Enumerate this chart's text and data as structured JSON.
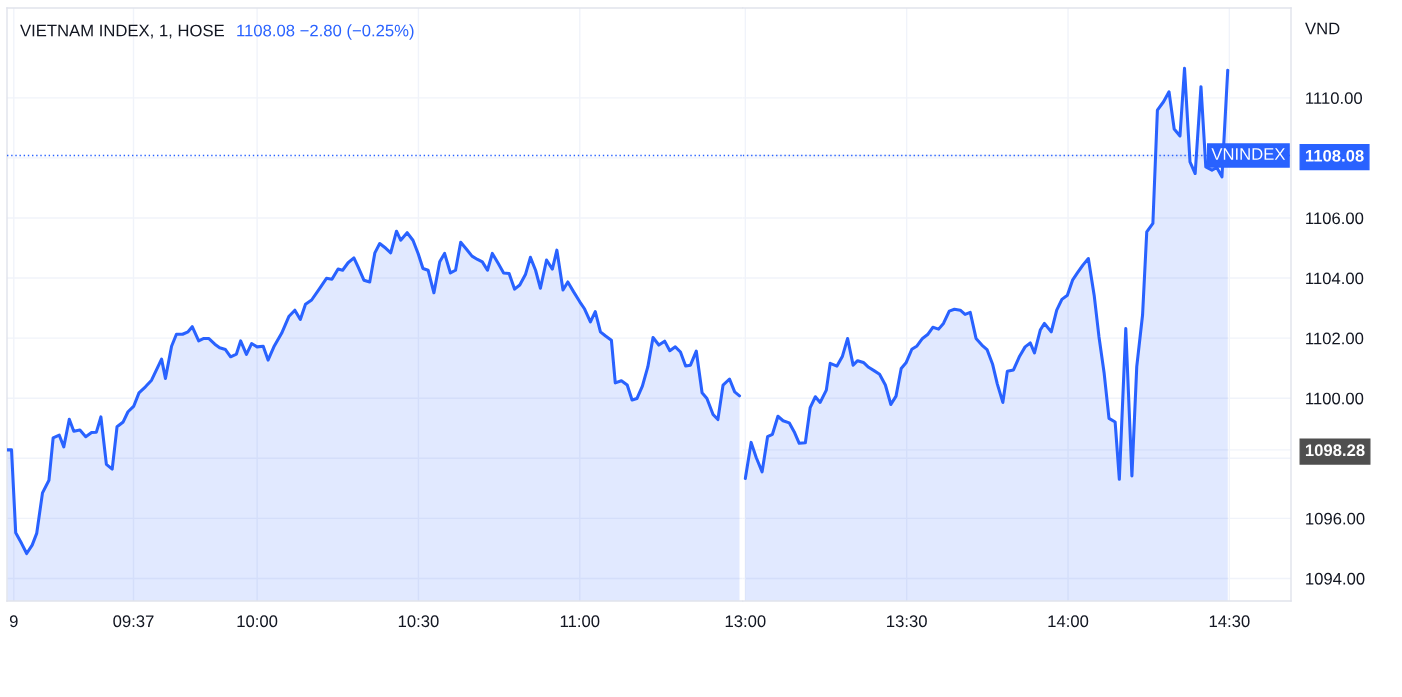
{
  "chart_data": [
    {
      "type": "area",
      "title": "VIETNAM INDEX, 1, HOSE",
      "subtitle": "1108.08 −2.80 (−0.25%)",
      "color": "#2962ff",
      "x": [
        9.226,
        9.239,
        9.252,
        9.27,
        9.286,
        9.303,
        9.317,
        9.335,
        9.355,
        9.368,
        9.387,
        9.401,
        9.418,
        9.432,
        9.451,
        9.469,
        9.487,
        9.502,
        9.516,
        9.533,
        9.551,
        9.566,
        9.585,
        9.6,
        9.618,
        9.634,
        9.654,
        9.673,
        9.704,
        9.716,
        9.735,
        9.75,
        9.769,
        9.786,
        9.799,
        9.819,
        9.835,
        9.85,
        9.869,
        9.884,
        9.902,
        9.918,
        9.936,
        9.949,
        9.967,
        9.983,
        10.0,
        10.019,
        10.034,
        10.052,
        10.076,
        10.099,
        10.117,
        10.134,
        10.15,
        10.169,
        10.194,
        10.215,
        10.232,
        10.251,
        10.265,
        10.282,
        10.3,
        10.313,
        10.331,
        10.349,
        10.365,
        10.38,
        10.399,
        10.414,
        10.432,
        10.445,
        10.465,
        10.483,
        10.499,
        10.514,
        10.53,
        10.548,
        10.566,
        10.581,
        10.599,
        10.615,
        10.631,
        10.649,
        10.666,
        10.683,
        10.698,
        10.714,
        10.729,
        10.747,
        10.764,
        10.781,
        10.798,
        10.814,
        10.832,
        10.847,
        10.863,
        10.878,
        10.897,
        10.915,
        10.929,
        10.948,
        10.963,
        10.981,
        11.0,
        11.015,
        11.033,
        11.048,
        11.064,
        11.08,
        11.098,
        11.11,
        11.129,
        11.147,
        11.162,
        11.177,
        11.194,
        11.211,
        11.227,
        11.245,
        11.263,
        11.279,
        11.296,
        11.312,
        11.328,
        11.343,
        11.361,
        11.379,
        11.394,
        11.413,
        11.428,
        11.444,
        11.464,
        11.48,
        11.495
      ],
      "values": [
        1098.28,
        1098.28,
        1095.52,
        1095.17,
        1094.83,
        1095.11,
        1095.5,
        1096.85,
        1097.27,
        1098.68,
        1098.77,
        1098.38,
        1099.3,
        1098.9,
        1098.94,
        1098.72,
        1098.86,
        1098.87,
        1099.38,
        1097.8,
        1097.64,
        1099.05,
        1099.21,
        1099.55,
        1099.74,
        1100.18,
        1100.38,
        1100.6,
        1101.3,
        1100.66,
        1101.73,
        1102.13,
        1102.13,
        1102.21,
        1102.38,
        1101.91,
        1101.99,
        1101.99,
        1101.8,
        1101.68,
        1101.62,
        1101.38,
        1101.47,
        1101.91,
        1101.46,
        1101.82,
        1101.71,
        1101.73,
        1101.27,
        1101.71,
        1102.16,
        1102.73,
        1102.93,
        1102.62,
        1103.13,
        1103.27,
        1103.66,
        1103.99,
        1103.96,
        1104.3,
        1104.26,
        1104.51,
        1104.67,
        1104.37,
        1103.93,
        1103.87,
        1104.84,
        1105.15,
        1104.99,
        1104.84,
        1105.56,
        1105.26,
        1105.51,
        1105.26,
        1104.82,
        1104.32,
        1104.26,
        1103.51,
        1104.54,
        1104.82,
        1104.17,
        1104.26,
        1105.19,
        1104.96,
        1104.73,
        1104.62,
        1104.54,
        1104.26,
        1104.82,
        1104.49,
        1104.17,
        1104.15,
        1103.63,
        1103.77,
        1104.13,
        1104.69,
        1104.26,
        1103.66,
        1104.6,
        1104.3,
        1104.93,
        1103.6,
        1103.87,
        1103.54,
        1103.21,
        1102.97,
        1102.54,
        1102.88,
        1102.21,
        1102.07,
        1101.93,
        1100.51,
        1100.58,
        1100.44,
        1099.94,
        1099.99,
        1100.4,
        1101.05,
        1102.02,
        1101.77,
        1101.9,
        1101.58,
        1101.71,
        1101.54,
        1101.07,
        1101.1,
        1101.57,
        1100.18,
        1099.99,
        1099.46,
        1099.29,
        1100.44,
        1100.64,
        1100.21,
        1100.08
      ],
      "xlim": [
        9.225,
        11.505
      ],
      "ylim": [
        1093.25,
        1112.99
      ],
      "xticks": [
        {
          "value": 9.246,
          "label": "9"
        },
        {
          "value": 9.617,
          "label": "09:37"
        },
        {
          "value": 10,
          "label": "10:00"
        },
        {
          "value": 10.5,
          "label": "10:30"
        },
        {
          "value": 11,
          "label": "11:00"
        }
      ],
      "yticks": [
        1094,
        1096,
        1098,
        1100,
        1102,
        1104,
        1106,
        1108,
        1110
      ],
      "grid": true,
      "tick_labels": "x",
      "ref_lines": [
        {
          "axis": "y",
          "value": 1108.08,
          "color": "#2962ff",
          "line_style": "dotted"
        }
      ]
    },
    {
      "type": "area",
      "ylabel": "VND",
      "color": "#2962ff",
      "x": [
        13.0,
        13.018,
        13.034,
        13.052,
        13.069,
        13.084,
        13.101,
        13.117,
        13.136,
        13.153,
        13.167,
        13.186,
        13.201,
        13.217,
        13.232,
        13.251,
        13.263,
        13.284,
        13.301,
        13.317,
        13.334,
        13.348,
        13.366,
        13.382,
        13.4,
        13.416,
        13.434,
        13.451,
        13.467,
        13.483,
        13.498,
        13.516,
        13.532,
        13.549,
        13.565,
        13.581,
        13.599,
        13.614,
        13.632,
        13.648,
        13.666,
        13.681,
        13.697,
        13.715,
        13.733,
        13.749,
        13.766,
        13.781,
        13.798,
        13.812,
        13.831,
        13.85,
        13.867,
        13.883,
        13.896,
        13.914,
        13.927,
        13.948,
        13.965,
        13.981,
        13.998,
        14.014,
        14.029,
        14.046,
        14.063,
        14.081,
        14.096,
        14.112,
        14.127,
        14.146,
        14.159,
        14.179,
        14.198,
        14.213,
        14.231,
        14.244,
        14.263,
        14.277,
        14.296,
        14.313,
        14.329,
        14.347,
        14.361,
        14.378,
        14.394,
        14.412,
        14.427,
        14.446,
        14.461,
        14.477,
        14.495
      ],
      "values": [
        1097.33,
        1098.53,
        1098.02,
        1097.55,
        1098.72,
        1098.8,
        1099.4,
        1099.25,
        1099.18,
        1098.85,
        1098.5,
        1098.52,
        1099.69,
        1100.05,
        1099.86,
        1100.27,
        1101.16,
        1101.07,
        1101.4,
        1101.99,
        1101.1,
        1101.25,
        1101.19,
        1101.03,
        1100.91,
        1100.8,
        1100.44,
        1099.79,
        1100.07,
        1100.99,
        1101.18,
        1101.63,
        1101.74,
        1101.99,
        1102.12,
        1102.36,
        1102.3,
        1102.49,
        1102.9,
        1102.96,
        1102.93,
        1102.79,
        1102.86,
        1101.99,
        1101.77,
        1101.62,
        1101.14,
        1100.47,
        1099.86,
        1100.9,
        1100.94,
        1101.4,
        1101.71,
        1101.84,
        1101.51,
        1102.27,
        1102.49,
        1102.21,
        1102.93,
        1103.29,
        1103.43,
        1103.93,
        1104.17,
        1104.43,
        1104.65,
        1103.43,
        1102.04,
        1100.83,
        1099.33,
        1099.21,
        1097.3,
        1102.32,
        1097.41,
        1101.05,
        1102.77,
        1105.54,
        1105.82,
        1109.59,
        1109.87,
        1110.2,
        1108.96,
        1108.73,
        1110.98,
        1107.87,
        1107.48,
        1110.37,
        1107.7,
        1107.59,
        1107.68,
        1107.37,
        1110.92
      ],
      "xlim": [
        12.992,
        14.691
      ],
      "ylim": [
        1093.25,
        1112.99
      ],
      "xticks": [
        {
          "value": 13,
          "label": "13:00"
        },
        {
          "value": 13.5,
          "label": "13:30"
        },
        {
          "value": 14,
          "label": "14:00"
        },
        {
          "value": 14.5,
          "label": "14:30"
        }
      ],
      "yticks": [
        {
          "value": 1094,
          "label": "1094.00"
        },
        {
          "value": 1096,
          "label": "1096.00"
        },
        {
          "value": 1098,
          "label": null
        },
        {
          "value": 1098.28,
          "label": "1098.28"
        },
        {
          "value": 1100,
          "label": "1100.00"
        },
        {
          "value": 1102,
          "label": "1102.00"
        },
        {
          "value": 1104,
          "label": "1104.00"
        },
        {
          "value": 1106,
          "label": "1106.00"
        },
        {
          "value": 1108,
          "label": null
        },
        {
          "value": 1108.08,
          "label": "1108.08"
        },
        {
          "value": 1110,
          "label": "1110.00"
        }
      ],
      "grid": true,
      "ref_lines": [
        {
          "axis": "y",
          "value": 1108.08,
          "label": "VNINDEX",
          "color": "#2962ff",
          "line_style": "dotted"
        }
      ]
    }
  ]
}
